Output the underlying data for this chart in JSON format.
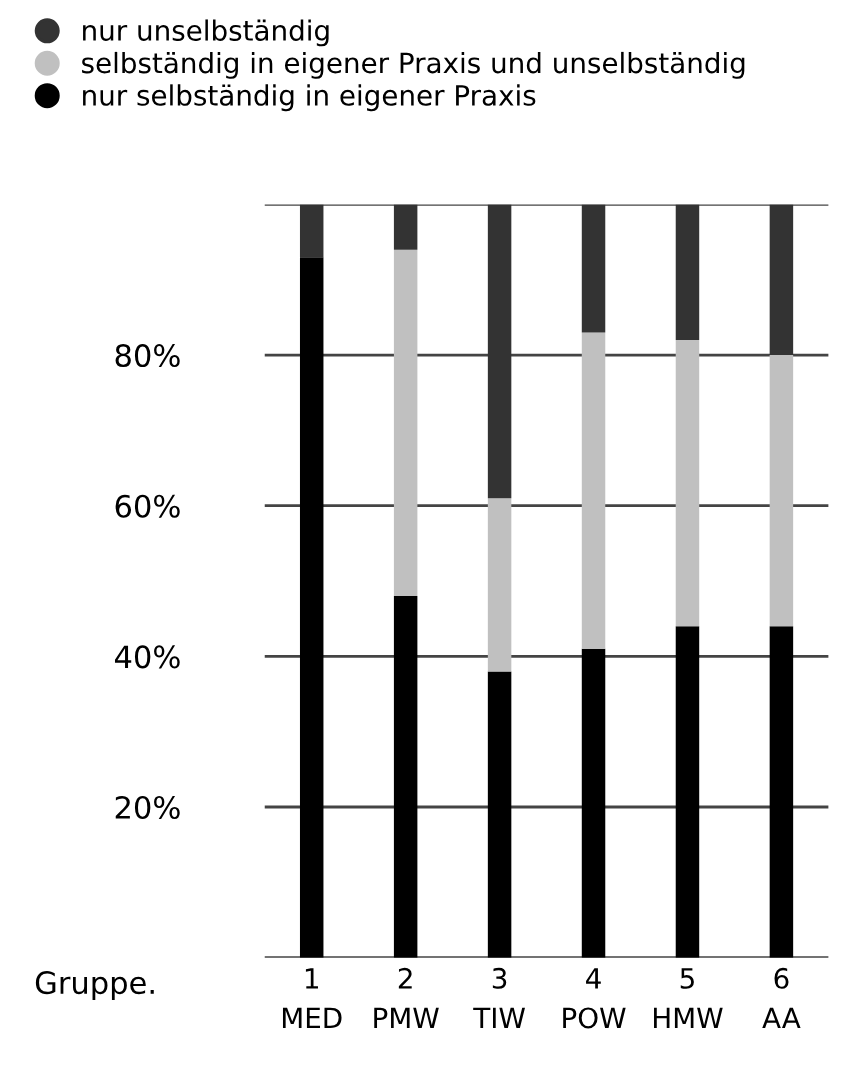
{
  "chart_data": {
    "type": "bar",
    "stacked": true,
    "categories": [
      "1\nMED",
      "2\nPMW",
      "3\nTIW",
      "4\nPOW",
      "5\nHMW",
      "6\nAA"
    ],
    "series": [
      {
        "name": "nur selbständig in eigener Praxis",
        "color": "#000000",
        "values": [
          93,
          48,
          38,
          41,
          44,
          44
        ]
      },
      {
        "name": "selbständig in eigener Praxis und unselbständig",
        "color": "#c0c0c0",
        "values": [
          0,
          46,
          23,
          42,
          38,
          36
        ]
      },
      {
        "name": "nur unselbständig",
        "color": "#333333",
        "values": [
          7,
          6,
          39,
          17,
          18,
          20
        ]
      }
    ],
    "ylim": [
      0,
      100
    ],
    "yticks": [
      {
        "value": 0,
        "label": null
      },
      {
        "value": 20,
        "label": "20%"
      },
      {
        "value": 40,
        "label": "40%"
      },
      {
        "value": 60,
        "label": "60%"
      },
      {
        "value": 80,
        "label": "80%"
      },
      {
        "value": 100,
        "label": null
      }
    ],
    "grid": "y",
    "legend": "top left",
    "annotations": [
      "Gruppe."
    ]
  }
}
